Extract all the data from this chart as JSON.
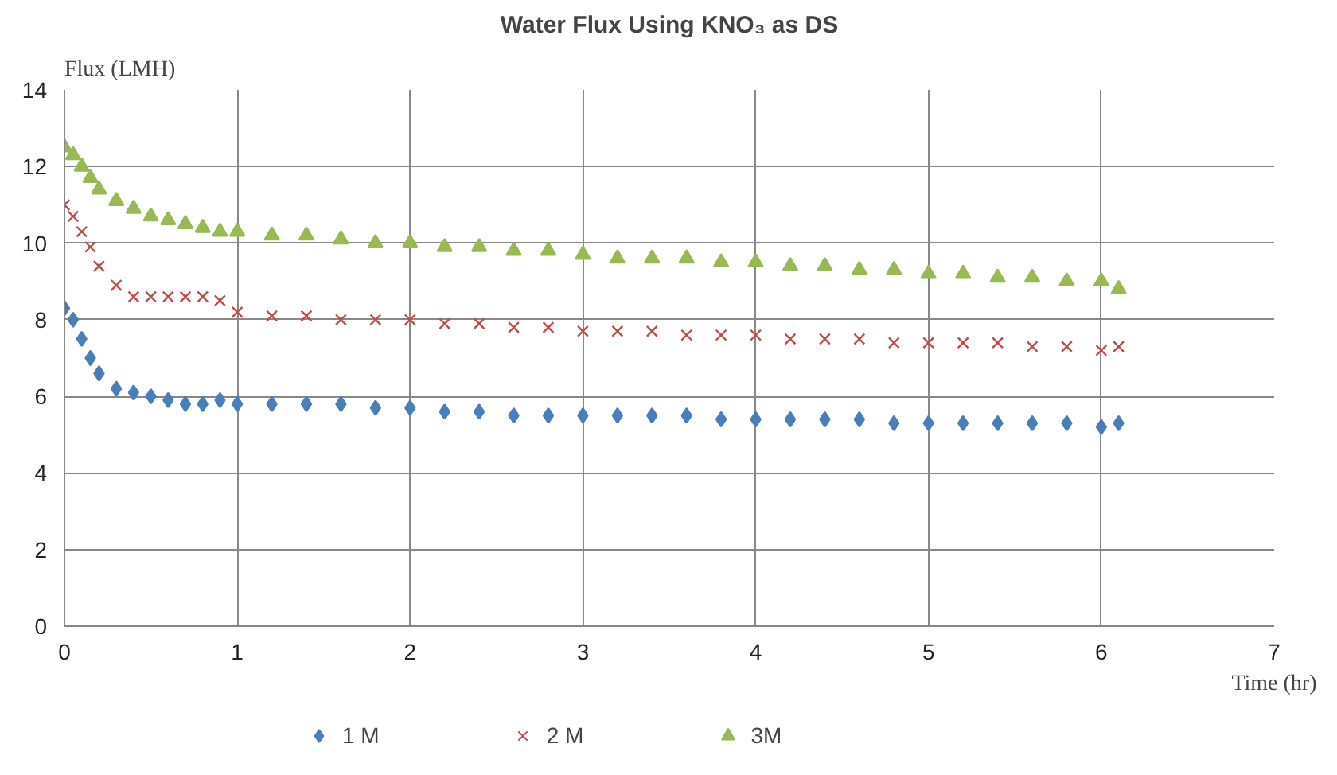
{
  "chart_data": {
    "type": "scatter",
    "title": "Water Flux Using KNO₃ as DS",
    "xlabel": "Time (hr)",
    "ylabel": "Flux (LMH)",
    "x": [
      0,
      0.05,
      0.1,
      0.15,
      0.2,
      0.3,
      0.4,
      0.5,
      0.6,
      0.7,
      0.8,
      0.9,
      1.0,
      1.2,
      1.4,
      1.6,
      1.8,
      2.0,
      2.2,
      2.4,
      2.6,
      2.8,
      3.0,
      3.2,
      3.4,
      3.6,
      3.8,
      4.0,
      4.2,
      4.4,
      4.6,
      4.8,
      5.0,
      5.2,
      5.4,
      5.6,
      5.8,
      6.0,
      6.1
    ],
    "series": [
      {
        "name": "1 M",
        "color": "#4a7ebb",
        "marker": "diamond",
        "values": [
          8.3,
          8.0,
          7.5,
          7.0,
          6.6,
          6.2,
          6.1,
          6.0,
          5.9,
          5.8,
          5.8,
          5.9,
          5.8,
          5.8,
          5.8,
          5.8,
          5.7,
          5.7,
          5.6,
          5.6,
          5.5,
          5.5,
          5.5,
          5.5,
          5.5,
          5.5,
          5.4,
          5.4,
          5.4,
          5.4,
          5.4,
          5.3,
          5.3,
          5.3,
          5.3,
          5.3,
          5.3,
          5.2,
          5.3
        ]
      },
      {
        "name": "2 M",
        "color": "#be4b48",
        "marker": "cross",
        "values": [
          11.0,
          10.7,
          10.3,
          9.9,
          9.4,
          8.9,
          8.6,
          8.6,
          8.6,
          8.6,
          8.6,
          8.5,
          8.2,
          8.1,
          8.1,
          8.0,
          8.0,
          8.0,
          7.9,
          7.9,
          7.8,
          7.8,
          7.7,
          7.7,
          7.7,
          7.6,
          7.6,
          7.6,
          7.5,
          7.5,
          7.5,
          7.4,
          7.4,
          7.4,
          7.4,
          7.3,
          7.3,
          7.2,
          7.3
        ]
      },
      {
        "name": "3M",
        "color": "#98b954",
        "marker": "triangle",
        "values": [
          12.5,
          12.3,
          12.0,
          11.7,
          11.4,
          11.1,
          10.9,
          10.7,
          10.6,
          10.5,
          10.4,
          10.3,
          10.3,
          10.2,
          10.2,
          10.1,
          10.0,
          10.0,
          9.9,
          9.9,
          9.8,
          9.8,
          9.7,
          9.6,
          9.6,
          9.6,
          9.5,
          9.5,
          9.4,
          9.4,
          9.3,
          9.3,
          9.2,
          9.2,
          9.1,
          9.1,
          9.0,
          9.0,
          8.8
        ]
      }
    ],
    "xlim": [
      0,
      7
    ],
    "xticks": [
      0,
      1,
      2,
      3,
      4,
      5,
      6,
      7
    ],
    "ylim": [
      0,
      14
    ],
    "yticks": [
      0,
      2,
      4,
      6,
      8,
      10,
      12,
      14
    ],
    "grid": true,
    "legend": "bottom"
  }
}
